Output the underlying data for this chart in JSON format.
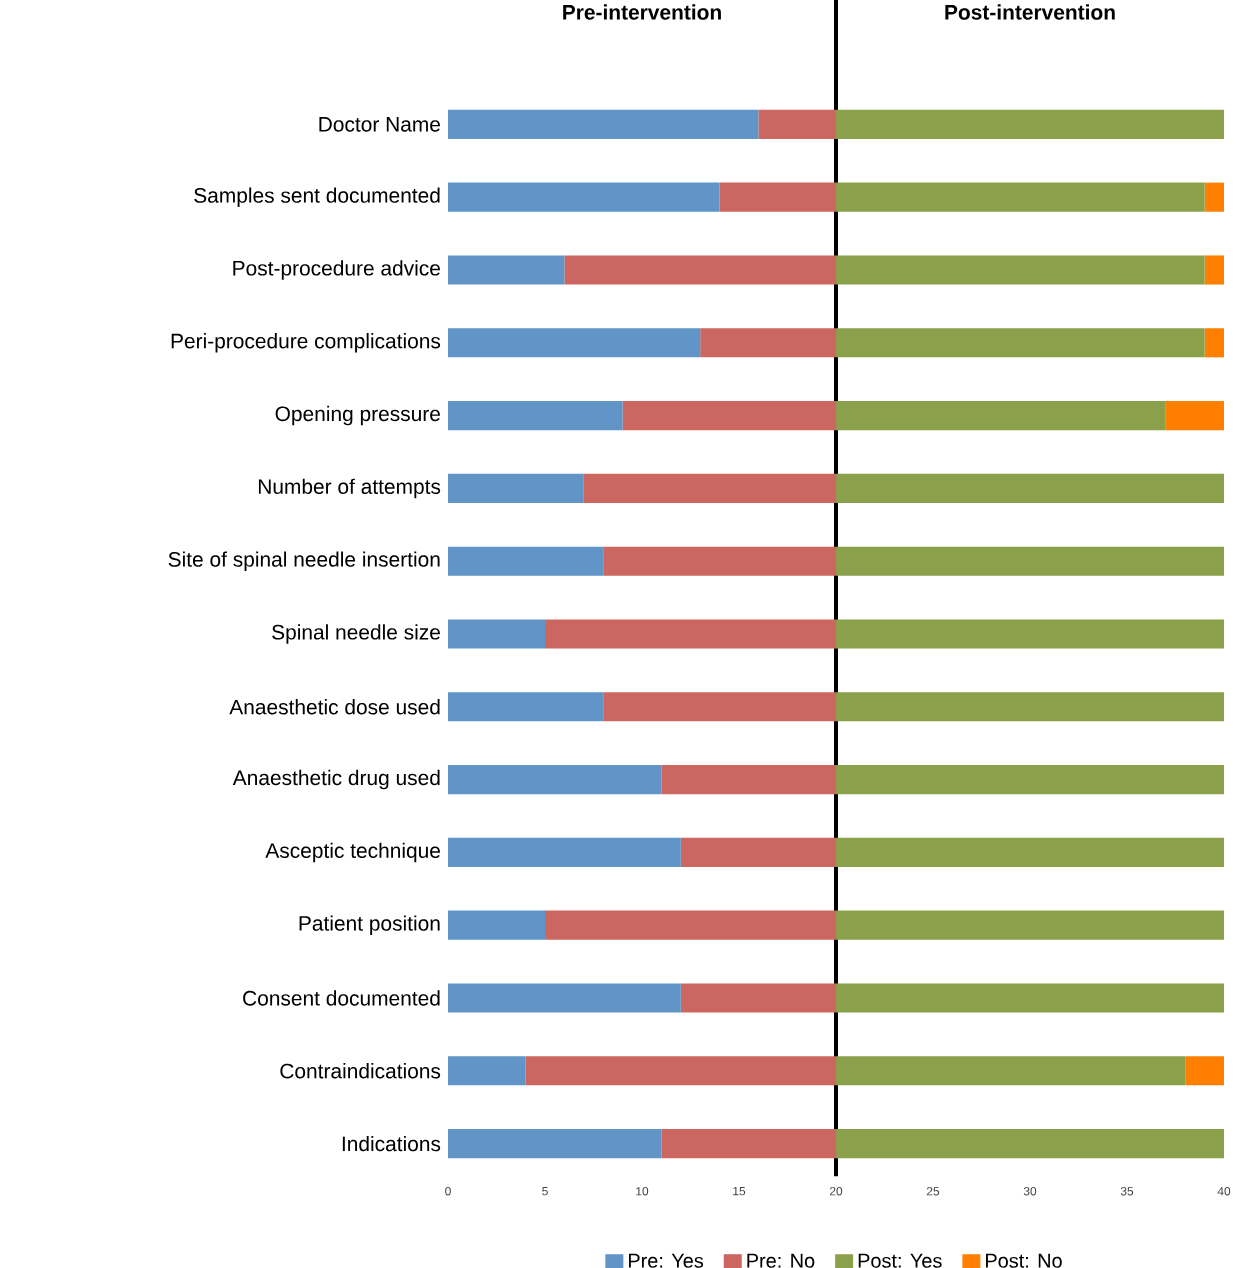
{
  "chart_data": {
    "type": "bar",
    "orientation": "horizontal",
    "stacked": true,
    "categories": [
      "Doctor Name",
      "Samples sent documented",
      "Post-procedure advice",
      "Peri-procedure complications",
      "Opening pressure",
      "Number of attempts",
      "Site of spinal needle insertion",
      "Spinal needle size",
      "Anaesthetic dose used",
      "Anaesthetic drug used",
      "Asceptic technique",
      "Patient position",
      "Consent documented",
      "Contraindications",
      "Indications"
    ],
    "series": [
      {
        "name": "Pre: Yes",
        "color": "#6195c8",
        "values": [
          16,
          14,
          6,
          13,
          9,
          7,
          8,
          5,
          8,
          11,
          12,
          5,
          12,
          4,
          11
        ]
      },
      {
        "name": "Pre: No",
        "color": "#cc6660",
        "values": [
          4,
          6,
          14,
          7,
          11,
          13,
          12,
          15,
          12,
          9,
          8,
          15,
          8,
          16,
          9
        ]
      },
      {
        "name": "Post: Yes",
        "color": "#8aa04b",
        "values": [
          20,
          19,
          19,
          19,
          17,
          20,
          20,
          20,
          20,
          20,
          20,
          20,
          20,
          18,
          20
        ]
      },
      {
        "name": "Post: No",
        "color": "#ff8000",
        "values": [
          0,
          1,
          1,
          1,
          3,
          0,
          0,
          0,
          0,
          0,
          0,
          0,
          0,
          2,
          0
        ]
      }
    ],
    "xlim": [
      0,
      40
    ],
    "xticks": [
      0,
      5,
      10,
      15,
      20,
      25,
      30,
      35,
      40
    ],
    "ref_lines": [
      {
        "axis": "x",
        "value": 20,
        "color": "#000000"
      }
    ],
    "annotations": [
      "Pre-intervention",
      "Post-intervention"
    ],
    "legend": "bottom",
    "grid": false
  }
}
